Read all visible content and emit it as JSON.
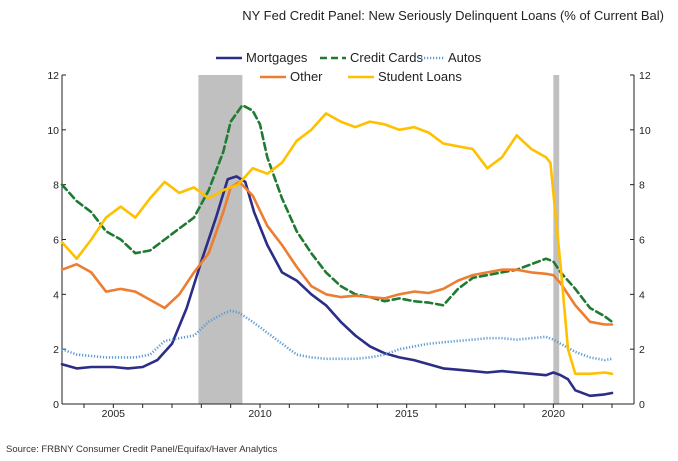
{
  "title": "NY Fed Credit Panel: New Seriously Delinquent Loans  (% of Current Bal)",
  "source": "Source:  FRBNY Consumer Credit Panel/Equifax/Haver Analytics",
  "colors": {
    "mortgages": "#2b2d86",
    "credit_cards": "#1f7a32",
    "autos": "#5b9bd5",
    "other": "#ed7d31",
    "student_loans": "#ffc000",
    "recession": "#c0c0c0",
    "axis": "#222222"
  },
  "chart_data": {
    "type": "line",
    "title": "NY Fed Credit Panel: New Seriously Delinquent Loans  (% of Current Bal)",
    "xlim": [
      2003.25,
      2022.75
    ],
    "ylim": [
      0,
      12
    ],
    "xticks": [
      2005,
      2010,
      2015,
      2020
    ],
    "yticks": [
      0,
      2,
      4,
      6,
      8,
      10,
      12
    ],
    "grid": false,
    "legend_position": "top-center",
    "recessions": [
      [
        2007.9,
        2009.4
      ],
      [
        2020.0,
        2020.2
      ]
    ],
    "series": [
      {
        "name": "Mortgages",
        "key": "mortgages",
        "style": "solid",
        "points": [
          [
            2003.25,
            1.45
          ],
          [
            2003.75,
            1.3
          ],
          [
            2004.25,
            1.35
          ],
          [
            2005.0,
            1.35
          ],
          [
            2005.5,
            1.3
          ],
          [
            2006.0,
            1.35
          ],
          [
            2006.5,
            1.6
          ],
          [
            2007.0,
            2.2
          ],
          [
            2007.5,
            3.5
          ],
          [
            2008.0,
            5.2
          ],
          [
            2008.5,
            6.8
          ],
          [
            2008.9,
            8.2
          ],
          [
            2009.2,
            8.3
          ],
          [
            2009.5,
            8.1
          ],
          [
            2009.8,
            7.0
          ],
          [
            2010.25,
            5.8
          ],
          [
            2010.75,
            4.8
          ],
          [
            2011.25,
            4.5
          ],
          [
            2011.75,
            4.0
          ],
          [
            2012.25,
            3.6
          ],
          [
            2012.75,
            3.0
          ],
          [
            2013.25,
            2.5
          ],
          [
            2013.75,
            2.1
          ],
          [
            2014.25,
            1.85
          ],
          [
            2014.75,
            1.7
          ],
          [
            2015.25,
            1.6
          ],
          [
            2015.75,
            1.45
          ],
          [
            2016.25,
            1.3
          ],
          [
            2016.75,
            1.25
          ],
          [
            2017.25,
            1.2
          ],
          [
            2017.75,
            1.15
          ],
          [
            2018.25,
            1.2
          ],
          [
            2018.75,
            1.15
          ],
          [
            2019.25,
            1.1
          ],
          [
            2019.75,
            1.05
          ],
          [
            2020.0,
            1.15
          ],
          [
            2020.25,
            1.05
          ],
          [
            2020.5,
            0.9
          ],
          [
            2020.75,
            0.5
          ],
          [
            2021.25,
            0.3
          ],
          [
            2021.75,
            0.35
          ],
          [
            2022.0,
            0.4
          ]
        ]
      },
      {
        "name": "Credit Cards",
        "key": "credit_cards",
        "style": "dashed",
        "points": [
          [
            2003.25,
            8.0
          ],
          [
            2003.75,
            7.4
          ],
          [
            2004.25,
            7.0
          ],
          [
            2004.75,
            6.3
          ],
          [
            2005.25,
            6.0
          ],
          [
            2005.75,
            5.5
          ],
          [
            2006.25,
            5.6
          ],
          [
            2006.75,
            6.0
          ],
          [
            2007.25,
            6.4
          ],
          [
            2007.75,
            6.8
          ],
          [
            2008.25,
            7.8
          ],
          [
            2008.75,
            9.2
          ],
          [
            2009.0,
            10.3
          ],
          [
            2009.4,
            10.9
          ],
          [
            2009.75,
            10.7
          ],
          [
            2010.0,
            10.2
          ],
          [
            2010.25,
            9.0
          ],
          [
            2010.75,
            7.5
          ],
          [
            2011.25,
            6.3
          ],
          [
            2011.75,
            5.5
          ],
          [
            2012.25,
            4.8
          ],
          [
            2012.75,
            4.3
          ],
          [
            2013.25,
            4.0
          ],
          [
            2013.75,
            3.9
          ],
          [
            2014.25,
            3.75
          ],
          [
            2014.75,
            3.85
          ],
          [
            2015.25,
            3.75
          ],
          [
            2015.75,
            3.7
          ],
          [
            2016.25,
            3.6
          ],
          [
            2016.75,
            4.2
          ],
          [
            2017.25,
            4.6
          ],
          [
            2017.75,
            4.7
          ],
          [
            2018.25,
            4.8
          ],
          [
            2018.75,
            4.9
          ],
          [
            2019.25,
            5.1
          ],
          [
            2019.75,
            5.3
          ],
          [
            2020.0,
            5.2
          ],
          [
            2020.25,
            4.8
          ],
          [
            2020.75,
            4.2
          ],
          [
            2021.25,
            3.5
          ],
          [
            2021.75,
            3.2
          ],
          [
            2022.0,
            3.0
          ]
        ]
      },
      {
        "name": "Autos",
        "key": "autos",
        "style": "dotted",
        "points": [
          [
            2003.25,
            2.0
          ],
          [
            2003.75,
            1.8
          ],
          [
            2004.25,
            1.75
          ],
          [
            2004.75,
            1.7
          ],
          [
            2005.25,
            1.7
          ],
          [
            2005.75,
            1.7
          ],
          [
            2006.25,
            1.8
          ],
          [
            2006.75,
            2.3
          ],
          [
            2007.25,
            2.4
          ],
          [
            2007.75,
            2.5
          ],
          [
            2008.25,
            3.0
          ],
          [
            2008.75,
            3.3
          ],
          [
            2009.0,
            3.4
          ],
          [
            2009.25,
            3.35
          ],
          [
            2009.75,
            3.0
          ],
          [
            2010.25,
            2.6
          ],
          [
            2010.75,
            2.2
          ],
          [
            2011.25,
            1.8
          ],
          [
            2011.75,
            1.7
          ],
          [
            2012.25,
            1.65
          ],
          [
            2012.75,
            1.65
          ],
          [
            2013.25,
            1.65
          ],
          [
            2013.75,
            1.7
          ],
          [
            2014.25,
            1.8
          ],
          [
            2014.75,
            2.0
          ],
          [
            2015.25,
            2.1
          ],
          [
            2015.75,
            2.2
          ],
          [
            2016.25,
            2.25
          ],
          [
            2016.75,
            2.3
          ],
          [
            2017.25,
            2.35
          ],
          [
            2017.75,
            2.4
          ],
          [
            2018.25,
            2.4
          ],
          [
            2018.75,
            2.35
          ],
          [
            2019.25,
            2.4
          ],
          [
            2019.75,
            2.45
          ],
          [
            2020.0,
            2.35
          ],
          [
            2020.25,
            2.2
          ],
          [
            2020.75,
            1.9
          ],
          [
            2021.25,
            1.7
          ],
          [
            2021.75,
            1.6
          ],
          [
            2022.0,
            1.65
          ]
        ]
      },
      {
        "name": "Other",
        "key": "other",
        "style": "solid",
        "points": [
          [
            2003.25,
            4.9
          ],
          [
            2003.75,
            5.1
          ],
          [
            2004.25,
            4.8
          ],
          [
            2004.75,
            4.1
          ],
          [
            2005.25,
            4.2
          ],
          [
            2005.75,
            4.1
          ],
          [
            2006.25,
            3.8
          ],
          [
            2006.75,
            3.5
          ],
          [
            2007.25,
            4.0
          ],
          [
            2007.75,
            4.8
          ],
          [
            2008.25,
            5.5
          ],
          [
            2008.75,
            7.0
          ],
          [
            2009.0,
            7.9
          ],
          [
            2009.3,
            8.1
          ],
          [
            2009.75,
            7.6
          ],
          [
            2010.25,
            6.5
          ],
          [
            2010.75,
            5.8
          ],
          [
            2011.25,
            5.0
          ],
          [
            2011.75,
            4.3
          ],
          [
            2012.25,
            4.0
          ],
          [
            2012.75,
            3.9
          ],
          [
            2013.25,
            3.95
          ],
          [
            2013.75,
            3.9
          ],
          [
            2014.25,
            3.85
          ],
          [
            2014.75,
            4.0
          ],
          [
            2015.25,
            4.1
          ],
          [
            2015.75,
            4.05
          ],
          [
            2016.25,
            4.2
          ],
          [
            2016.75,
            4.5
          ],
          [
            2017.25,
            4.7
          ],
          [
            2017.75,
            4.8
          ],
          [
            2018.25,
            4.9
          ],
          [
            2018.75,
            4.9
          ],
          [
            2019.25,
            4.8
          ],
          [
            2019.75,
            4.75
          ],
          [
            2020.0,
            4.7
          ],
          [
            2020.25,
            4.4
          ],
          [
            2020.75,
            3.6
          ],
          [
            2021.25,
            3.0
          ],
          [
            2021.75,
            2.9
          ],
          [
            2022.0,
            2.9
          ]
        ]
      },
      {
        "name": "Student Loans",
        "key": "student_loans",
        "style": "solid",
        "points": [
          [
            2003.25,
            5.9
          ],
          [
            2003.75,
            5.3
          ],
          [
            2004.25,
            6.0
          ],
          [
            2004.75,
            6.8
          ],
          [
            2005.25,
            7.2
          ],
          [
            2005.75,
            6.8
          ],
          [
            2006.25,
            7.5
          ],
          [
            2006.75,
            8.1
          ],
          [
            2007.25,
            7.7
          ],
          [
            2007.75,
            7.9
          ],
          [
            2008.25,
            7.5
          ],
          [
            2008.75,
            7.8
          ],
          [
            2009.25,
            8.0
          ],
          [
            2009.75,
            8.6
          ],
          [
            2010.25,
            8.4
          ],
          [
            2010.75,
            8.8
          ],
          [
            2011.25,
            9.6
          ],
          [
            2011.75,
            10.0
          ],
          [
            2012.25,
            10.6
          ],
          [
            2012.75,
            10.3
          ],
          [
            2013.25,
            10.1
          ],
          [
            2013.75,
            10.3
          ],
          [
            2014.25,
            10.2
          ],
          [
            2014.75,
            10.0
          ],
          [
            2015.25,
            10.1
          ],
          [
            2015.75,
            9.9
          ],
          [
            2016.25,
            9.5
          ],
          [
            2016.75,
            9.4
          ],
          [
            2017.25,
            9.3
          ],
          [
            2017.75,
            8.6
          ],
          [
            2018.25,
            9.0
          ],
          [
            2018.75,
            9.8
          ],
          [
            2019.25,
            9.3
          ],
          [
            2019.75,
            9.0
          ],
          [
            2019.9,
            8.8
          ],
          [
            2020.25,
            5.0
          ],
          [
            2020.5,
            2.0
          ],
          [
            2020.75,
            1.1
          ],
          [
            2021.25,
            1.1
          ],
          [
            2021.75,
            1.15
          ],
          [
            2022.0,
            1.1
          ]
        ]
      }
    ]
  }
}
